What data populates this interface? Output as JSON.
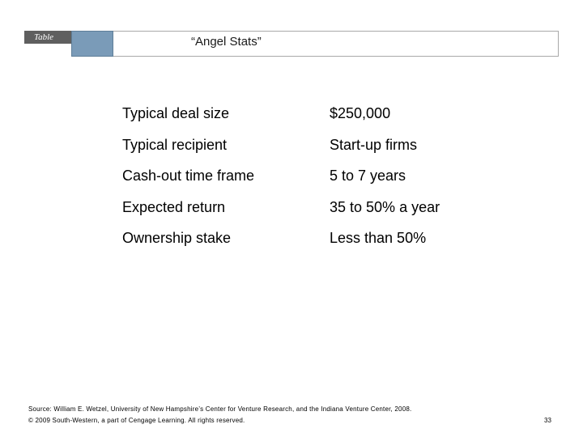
{
  "header": {
    "label": "Table",
    "title": "“Angel Stats”"
  },
  "stats": [
    {
      "label": "Typical deal size",
      "value": "$250,000"
    },
    {
      "label": "Typical recipient",
      "value": "Start-up firms"
    },
    {
      "label": "Cash-out time frame",
      "value": "5 to 7 years"
    },
    {
      "label": "Expected return",
      "value": "35 to 50% a year"
    },
    {
      "label": "Ownership stake",
      "value": "Less than 50%"
    }
  ],
  "footer": {
    "source": "Source: William E. Wetzel, University of New Hampshire’s Center for Venture Research, and the Indiana Venture Center, 2008.",
    "copyright": "© 2009 South-Western, a part of Cengage Learning. All rights reserved.",
    "page_number": "33"
  },
  "colors": {
    "label_tab": "#5f5f5f",
    "accent_block": "#7a9bb8",
    "header_border": "#a9a9a9"
  }
}
